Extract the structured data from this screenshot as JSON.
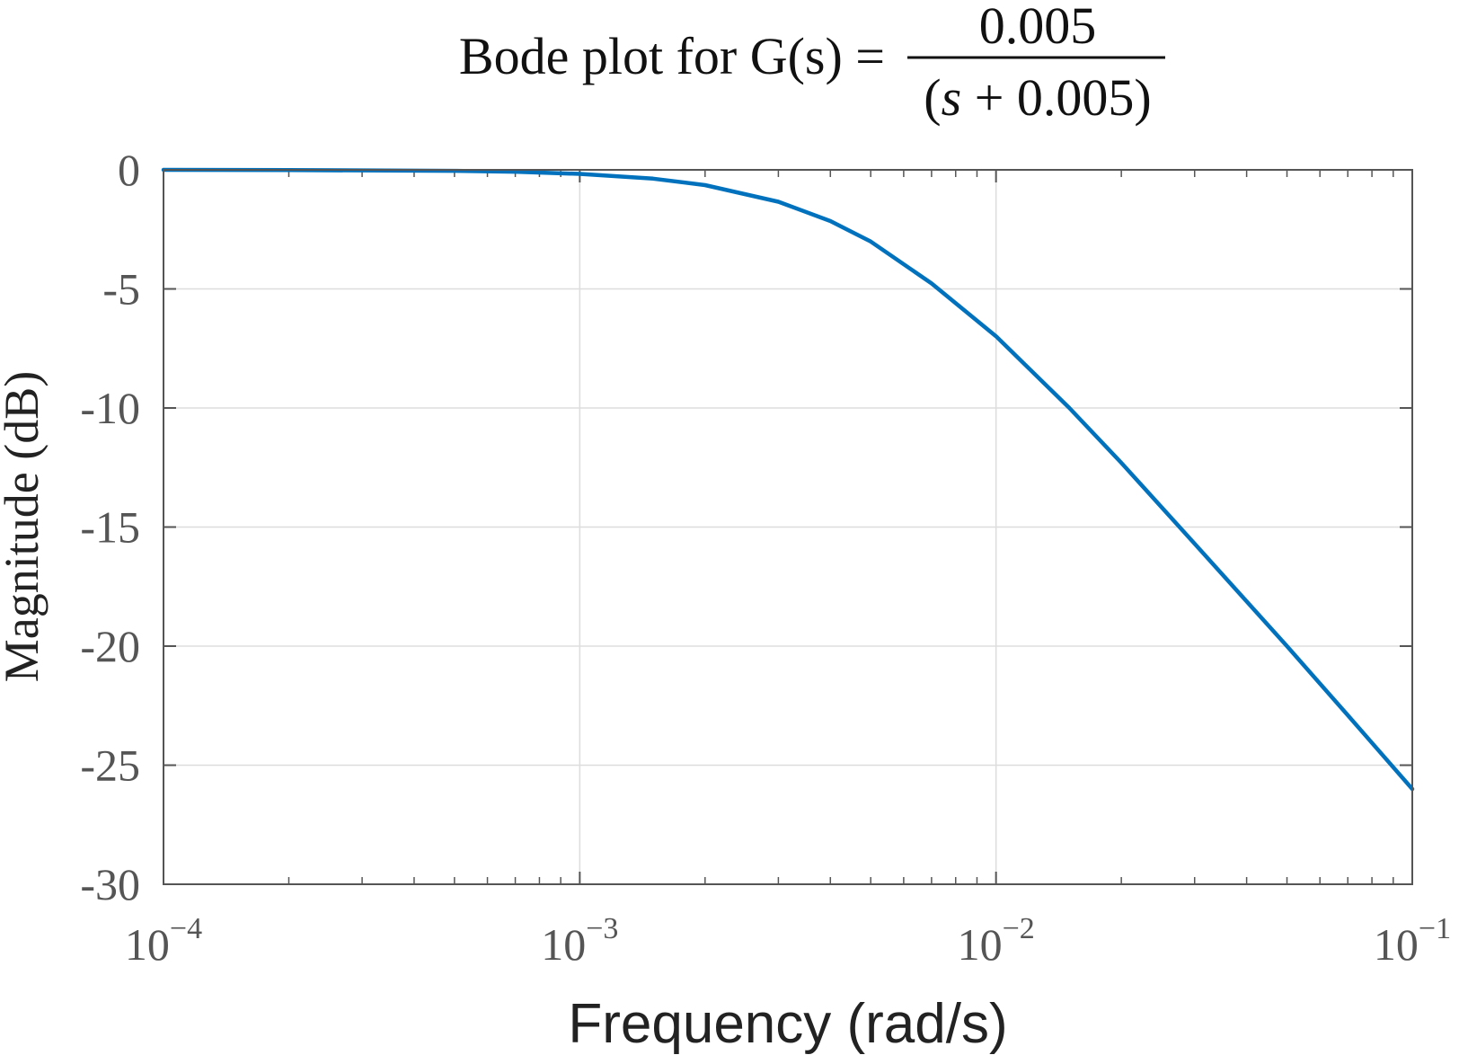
{
  "chart_data": {
    "type": "line",
    "title": {
      "prefix": "Bode plot for G(s) = ",
      "numerator": "0.005",
      "denominator_open": "(",
      "denominator_var": "s",
      "denominator_rest": " + 0.005)"
    },
    "xlabel": "Frequency (rad/s)",
    "ylabel": "Magnitude (dB)",
    "x_scale": "log",
    "xlim": [
      0.0001,
      0.1
    ],
    "ylim": [
      -30,
      0
    ],
    "x_ticks": [
      {
        "value": 0.0001,
        "base": "10",
        "exp": "−4"
      },
      {
        "value": 0.001,
        "base": "10",
        "exp": "−3"
      },
      {
        "value": 0.01,
        "base": "10",
        "exp": "−2"
      },
      {
        "value": 0.1,
        "base": "10",
        "exp": "−1"
      }
    ],
    "y_ticks": [
      {
        "value": 0,
        "label": "0"
      },
      {
        "value": -5,
        "label": "-5"
      },
      {
        "value": -10,
        "label": "-10"
      },
      {
        "value": -15,
        "label": "-15"
      },
      {
        "value": -20,
        "label": "-20"
      },
      {
        "value": -25,
        "label": "-25"
      },
      {
        "value": -30,
        "label": "-30"
      }
    ],
    "grid": true,
    "series": [
      {
        "color": "#0072BD",
        "x": [
          0.0001,
          0.0002,
          0.0005,
          0.0007,
          0.001,
          0.0015,
          0.002,
          0.003,
          0.004,
          0.005,
          0.007,
          0.01,
          0.015,
          0.02,
          0.03,
          0.05,
          0.07,
          0.1
        ],
        "y": [
          0.0,
          -0.01,
          -0.04,
          -0.08,
          -0.17,
          -0.37,
          -0.64,
          -1.34,
          -2.15,
          -3.01,
          -4.77,
          -6.99,
          -10.0,
          -12.3,
          -15.7,
          -20.0,
          -22.9,
          -26.0
        ]
      }
    ]
  }
}
